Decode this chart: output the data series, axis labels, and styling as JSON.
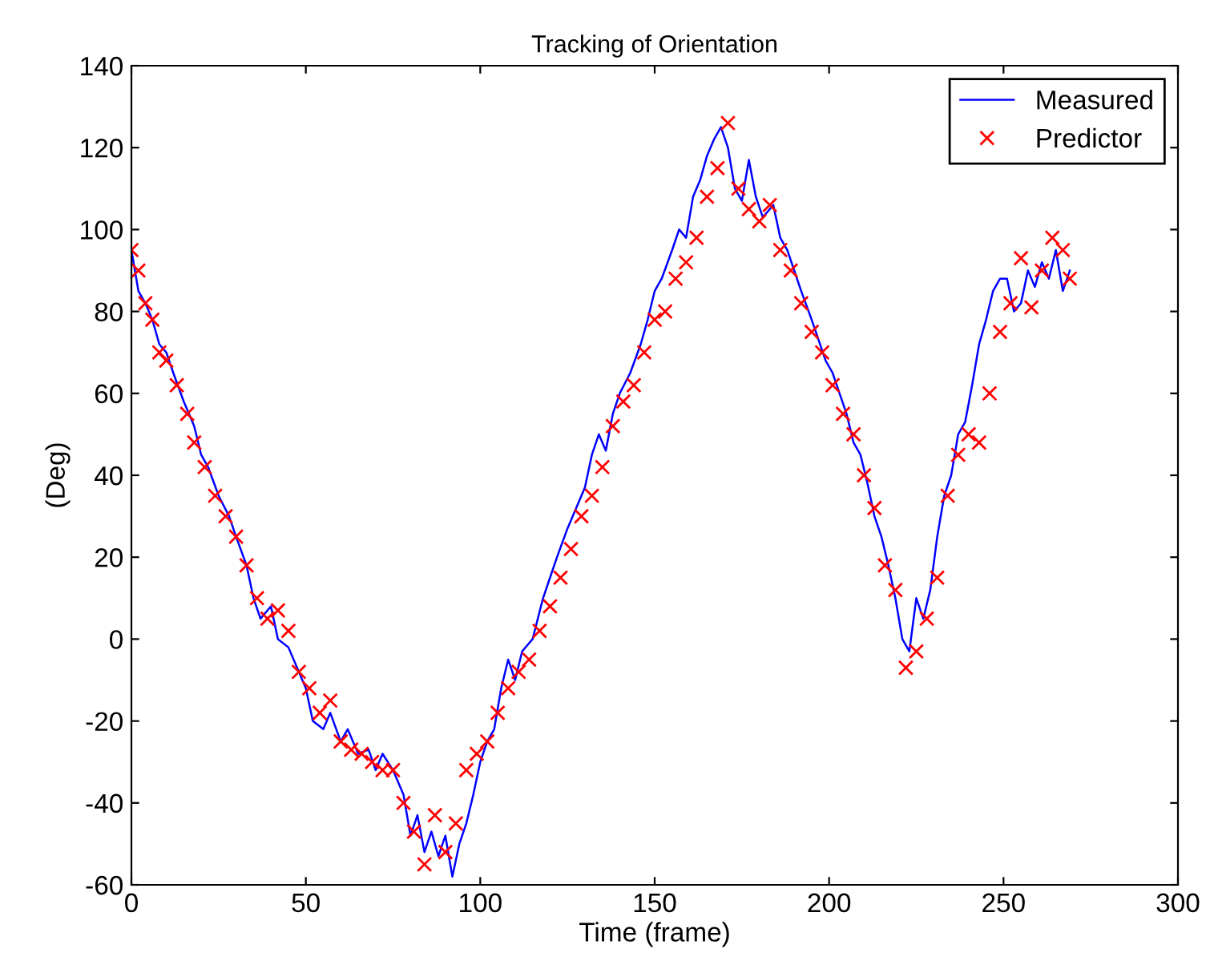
{
  "chart_data": {
    "type": "line",
    "title": "Tracking of Orientation",
    "xlabel": "Time (frame)",
    "ylabel": "(Deg)",
    "xlim": [
      0,
      300
    ],
    "ylim": [
      -60,
      140
    ],
    "xticks": [
      0,
      50,
      100,
      150,
      200,
      250,
      300
    ],
    "yticks": [
      -60,
      -40,
      -20,
      0,
      20,
      40,
      60,
      80,
      100,
      120,
      140
    ],
    "grid": false,
    "legend": "top right",
    "series": [
      {
        "name": "Measured",
        "color": "#0000ff",
        "marker": "none",
        "x": [
          0,
          2,
          4,
          6,
          8,
          10,
          12,
          15,
          18,
          20,
          22,
          25,
          28,
          30,
          33,
          35,
          37,
          40,
          42,
          45,
          48,
          50,
          52,
          55,
          57,
          60,
          62,
          65,
          68,
          70,
          72,
          75,
          78,
          80,
          82,
          84,
          86,
          88,
          90,
          92,
          94,
          96,
          98,
          100,
          102,
          104,
          106,
          108,
          110,
          112,
          115,
          118,
          120,
          122,
          125,
          128,
          130,
          132,
          134,
          136,
          138,
          140,
          143,
          146,
          148,
          150,
          152,
          155,
          157,
          159,
          161,
          163,
          165,
          167,
          169,
          171,
          173,
          175,
          177,
          179,
          181,
          184,
          186,
          188,
          190,
          192,
          195,
          197,
          199,
          201,
          203,
          205,
          207,
          209,
          211,
          213,
          215,
          217,
          219,
          221,
          223,
          225,
          227,
          229,
          231,
          233,
          235,
          237,
          239,
          241,
          243,
          245,
          247,
          249,
          251,
          253,
          255,
          257,
          259,
          261,
          263,
          265,
          267,
          269
        ],
        "values": [
          95,
          85,
          82,
          78,
          72,
          70,
          65,
          58,
          52,
          45,
          42,
          35,
          30,
          25,
          18,
          10,
          5,
          8,
          0,
          -2,
          -8,
          -12,
          -20,
          -22,
          -18,
          -25,
          -22,
          -28,
          -27,
          -32,
          -28,
          -32,
          -38,
          -48,
          -43,
          -52,
          -47,
          -53,
          -48,
          -58,
          -50,
          -45,
          -38,
          -30,
          -25,
          -22,
          -12,
          -5,
          -10,
          -3,
          0,
          10,
          15,
          20,
          27,
          33,
          37,
          45,
          50,
          46,
          55,
          60,
          65,
          72,
          78,
          85,
          88,
          95,
          100,
          98,
          108,
          112,
          118,
          122,
          125,
          120,
          110,
          107,
          117,
          108,
          103,
          106,
          98,
          95,
          90,
          85,
          78,
          73,
          68,
          65,
          60,
          55,
          48,
          45,
          38,
          30,
          25,
          18,
          10,
          0,
          -3,
          10,
          5,
          12,
          25,
          35,
          40,
          50,
          53,
          62,
          72,
          78,
          85,
          88,
          88,
          80,
          82,
          90,
          86,
          92,
          88,
          95,
          85,
          90
        ]
      },
      {
        "name": "Predictor",
        "type": "scatter",
        "color": "#ff0000",
        "marker": "cross",
        "x": [
          0,
          2,
          4,
          6,
          8,
          10,
          13,
          16,
          18,
          21,
          24,
          27,
          30,
          33,
          36,
          39,
          42,
          45,
          48,
          51,
          54,
          57,
          60,
          63,
          66,
          69,
          72,
          75,
          78,
          81,
          84,
          87,
          90,
          93,
          96,
          99,
          102,
          105,
          108,
          111,
          114,
          117,
          120,
          123,
          126,
          129,
          132,
          135,
          138,
          141,
          144,
          147,
          150,
          153,
          156,
          159,
          162,
          165,
          168,
          171,
          174,
          177,
          180,
          183,
          186,
          189,
          192,
          195,
          198,
          201,
          204,
          207,
          210,
          213,
          216,
          219,
          222,
          225,
          228,
          231,
          234,
          237,
          240,
          243,
          246,
          249,
          252,
          255,
          258,
          261,
          264,
          267,
          269
        ],
        "values": [
          95,
          90,
          82,
          78,
          70,
          68,
          62,
          55,
          48,
          42,
          35,
          30,
          25,
          18,
          10,
          5,
          7,
          2,
          -8,
          -12,
          -18,
          -15,
          -25,
          -27,
          -28,
          -30,
          -32,
          -32,
          -40,
          -47,
          -55,
          -43,
          -52,
          -45,
          -32,
          -28,
          -25,
          -18,
          -12,
          -8,
          -5,
          2,
          8,
          15,
          22,
          30,
          35,
          42,
          52,
          58,
          62,
          70,
          78,
          80,
          88,
          92,
          98,
          108,
          115,
          126,
          110,
          105,
          102,
          106,
          95,
          90,
          82,
          75,
          70,
          62,
          55,
          50,
          40,
          32,
          18,
          12,
          -7,
          -3,
          5,
          15,
          35,
          45,
          50,
          48,
          60,
          75,
          82,
          93,
          81,
          90,
          98,
          95,
          88
        ]
      }
    ]
  }
}
